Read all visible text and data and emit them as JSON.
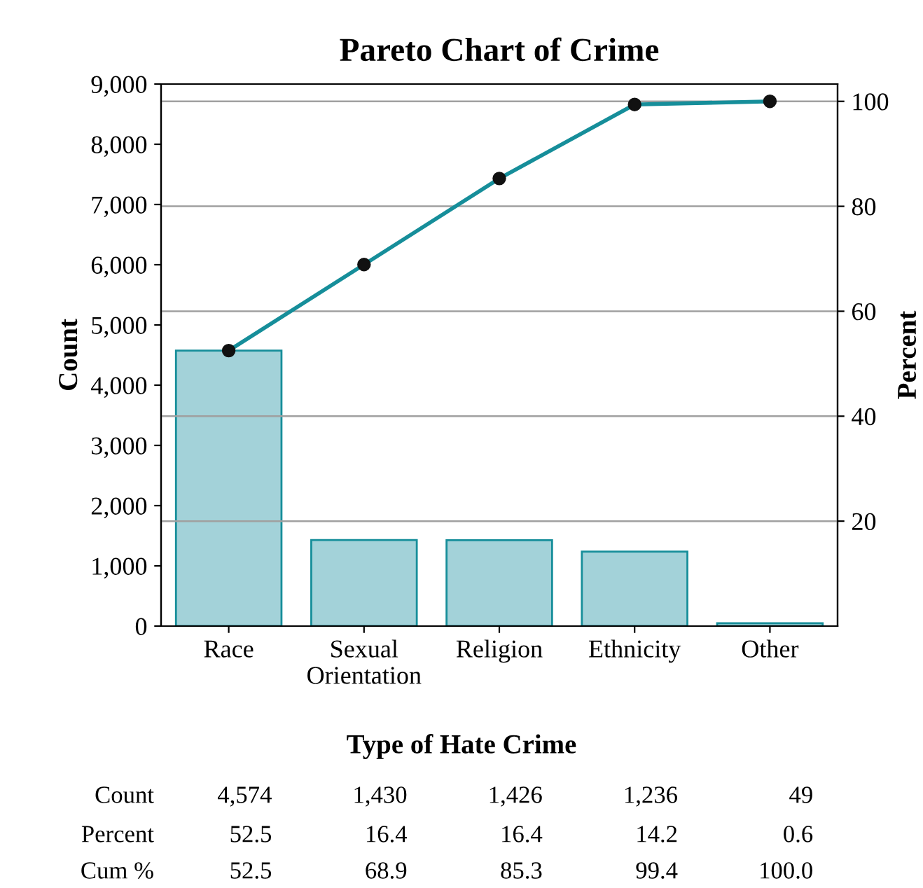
{
  "chart_data": {
    "type": "bar",
    "title": "Pareto Chart of Crime",
    "xlabel": "Type of Hate Crime",
    "ylabel": "Count",
    "y2label": "Percent",
    "categories": [
      "Race",
      "Sexual\nOrientation",
      "Religion",
      "Ethnicity",
      "Other"
    ],
    "series": [
      {
        "color": "#a3d2d9",
        "values": [
          4574,
          1430,
          1426,
          1236,
          49
        ],
        "value_labels": [
          "4,574",
          "1,430",
          "1,426",
          "1,236",
          "49"
        ]
      },
      {
        "type": "line",
        "axis": "y2",
        "color": "#168e9a",
        "marker": "circle",
        "values": [
          52.5,
          68.9,
          85.3,
          99.4,
          100.0
        ],
        "value_labels": [
          "52.5",
          "68.9",
          "85.3",
          "99.4",
          "100.0"
        ]
      }
    ],
    "annotations": [
      "Count",
      "Percent",
      "Cum %",
      "52.5",
      "16.4",
      "16.4",
      "14.2",
      "0.6"
    ],
    "ylim": [
      0,
      9000
    ],
    "yticks": [
      0,
      {
        "value": 1000,
        "label": "1,000"
      },
      {
        "value": 2000,
        "label": "2,000"
      },
      {
        "value": 3000,
        "label": "3,000"
      },
      {
        "value": 4000,
        "label": "4,000"
      },
      {
        "value": 5000,
        "label": "5,000"
      },
      {
        "value": 6000,
        "label": "6,000"
      },
      {
        "value": 7000,
        "label": "7,000"
      },
      {
        "value": 8000,
        "label": "8,000"
      },
      {
        "value": 9000,
        "label": "9,000"
      }
    ],
    "y2lim": [
      0,
      103.3
    ],
    "y2ticks": [
      20,
      40,
      60,
      80,
      100
    ],
    "grid": true,
    "legend": false
  }
}
